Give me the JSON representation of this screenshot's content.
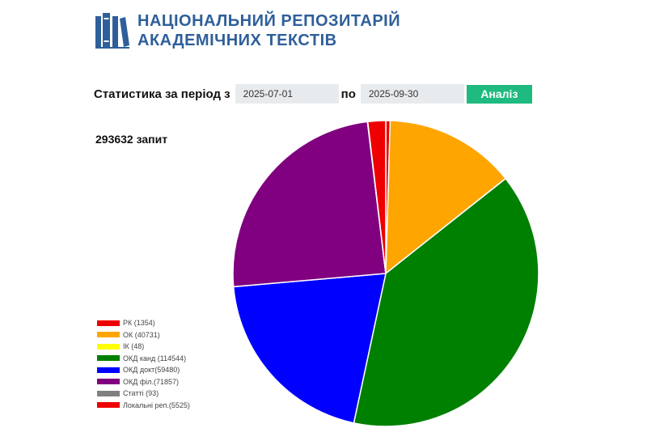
{
  "header": {
    "title_line1": "НАЦІОНАЛЬНИЙ РЕПОЗИТАРІЙ",
    "title_line2": "АКАДЕМІЧНИХ ТЕКСТІВ",
    "logo_icon": "books-icon",
    "brand_color": "#2e5f9a"
  },
  "period": {
    "label": "Статистика за період з",
    "from_value": "2025-07-01",
    "to_label": "по",
    "to_value": "2025-09-30",
    "analyze_label": "Аналіз",
    "analyze_color": "#1fba80"
  },
  "summary": {
    "total_text": "293632 запит"
  },
  "chart_data": {
    "type": "pie",
    "series": [
      {
        "name": "РК (1354)",
        "value": 1354,
        "color": "#ee0000"
      },
      {
        "name": "ОК (40731)",
        "value": 40731,
        "color": "#ffa500"
      },
      {
        "name": "ІК (48)",
        "value": 48,
        "color": "#ffff00"
      },
      {
        "name": "ОКД канд (114544)",
        "value": 114544,
        "color": "#008000"
      },
      {
        "name": "ОКД докт(59480)",
        "value": 59480,
        "color": "#0000ff"
      },
      {
        "name": "ОКД філ.(71857)",
        "value": 71857,
        "color": "#800080"
      },
      {
        "name": "Статті (93)",
        "value": 93,
        "color": "#808080"
      },
      {
        "name": "Локальні реп.(5525)",
        "value": 5525,
        "color": "#ee0000"
      }
    ],
    "legend_position": "bottom-left"
  }
}
